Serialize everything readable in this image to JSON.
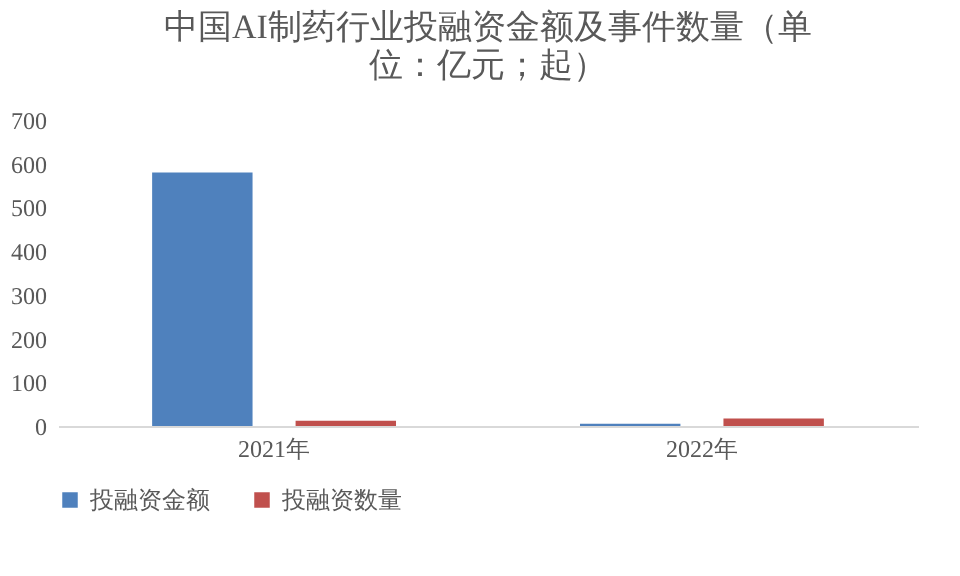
{
  "chart_data": {
    "type": "bar",
    "title": "中国AI制药行业投融资金额及事件数量（单位：亿元；起）",
    "categories": [
      "2021年",
      "2022年"
    ],
    "series": [
      {
        "name": "投融资金额",
        "color": "#4f81bd",
        "values": [
          580,
          5
        ]
      },
      {
        "name": "投融资数量",
        "color": "#c0504d",
        "values": [
          12,
          17
        ]
      }
    ],
    "ylim": [
      0,
      700
    ],
    "yticks": [
      0,
      100,
      200,
      300,
      400,
      500,
      600,
      700
    ],
    "grid": false,
    "legend": "bottom"
  }
}
